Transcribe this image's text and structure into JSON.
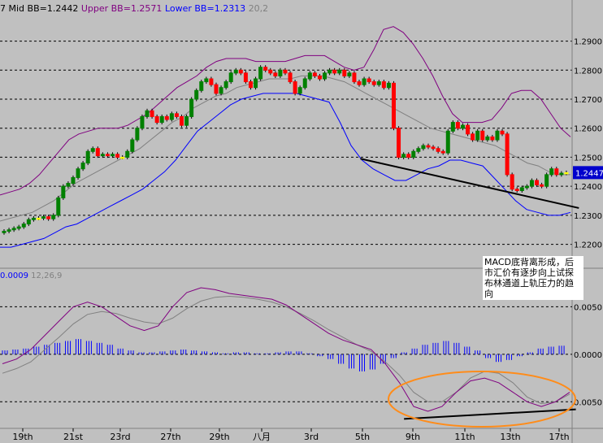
{
  "header": {
    "mid_bb": "Mid BB=1.2442",
    "upper_bb": "Upper BB=1.2571",
    "lower_bb": "Lower BB=1.2313",
    "bb_params": "20,2",
    "clip_prefix": "7"
  },
  "macd_header": {
    "value": "0.0009",
    "params": "12,26,9"
  },
  "current_price": "1.2447",
  "annotation": "MACD底背离形成，后市汇价有逐步向上试探布林通道上轨压力的趋向",
  "colors": {
    "background": "#c0c0c0",
    "bull_candle": "#008000",
    "bear_candle": "#ff0000",
    "doji": "#ffff00",
    "upper_band": "#800080",
    "mid_band": "#808080",
    "lower_band": "#0000ff",
    "histogram": "#0000ff",
    "macd_line": "#800080",
    "signal_line": "#808080",
    "ellipse": "#ff8c1a",
    "price_tag_bg": "#0000cc"
  },
  "chart_data": [
    {
      "type": "candlestick",
      "title": "",
      "ylim": [
        1.214,
        1.298
      ],
      "y_ticks": [
        "1.2900",
        "1.2800",
        "1.2700",
        "1.2600",
        "1.2500",
        "1.2400",
        "1.2300",
        "1.2200"
      ],
      "y_tick_values": [
        1.29,
        1.28,
        1.27,
        1.26,
        1.25,
        1.24,
        1.23,
        1.22
      ],
      "x_ticks": [
        "19th",
        "21st",
        "23rd",
        "27th",
        "29th",
        "八月",
        "3rd",
        "5th",
        "9th",
        "11th",
        "13th",
        "17th"
      ],
      "close": [
        1.2245,
        1.225,
        1.2255,
        1.226,
        1.227,
        1.2285,
        1.229,
        1.229,
        1.2295,
        1.2288,
        1.23,
        1.236,
        1.24,
        1.241,
        1.243,
        1.246,
        1.248,
        1.252,
        1.253,
        1.2505,
        1.251,
        1.2505,
        1.251,
        1.25,
        1.25,
        1.252,
        1.256,
        1.26,
        1.264,
        1.266,
        1.264,
        1.262,
        1.264,
        1.263,
        1.265,
        1.264,
        1.261,
        1.264,
        1.27,
        1.273,
        1.276,
        1.277,
        1.275,
        1.272,
        1.274,
        1.276,
        1.279,
        1.28,
        1.279,
        1.276,
        1.274,
        1.277,
        1.281,
        1.28,
        1.279,
        1.278,
        1.28,
        1.279,
        1.276,
        1.272,
        1.274,
        1.277,
        1.279,
        1.278,
        1.277,
        1.279,
        1.28,
        1.279,
        1.28,
        1.278,
        1.279,
        1.276,
        1.275,
        1.277,
        1.276,
        1.275,
        1.276,
        1.274,
        1.2755,
        1.26,
        1.25,
        1.251,
        1.25,
        1.252,
        1.253,
        1.254,
        1.2535,
        1.253,
        1.252,
        1.2515,
        1.259,
        1.262,
        1.26,
        1.261,
        1.258,
        1.256,
        1.259,
        1.256,
        1.257,
        1.256,
        1.259,
        1.258,
        1.244,
        1.239,
        1.2385,
        1.2395,
        1.24,
        1.242,
        1.2405,
        1.24,
        1.244,
        1.246,
        1.244,
        1.2445,
        1.2447
      ],
      "upper_band": [
        1.237,
        1.238,
        1.239,
        1.241,
        1.244,
        1.248,
        1.252,
        1.256,
        1.258,
        1.259,
        1.26,
        1.26,
        1.26,
        1.261,
        1.263,
        1.265,
        1.268,
        1.271,
        1.274,
        1.276,
        1.278,
        1.281,
        1.283,
        1.284,
        1.284,
        1.284,
        1.283,
        1.283,
        1.283,
        1.283,
        1.284,
        1.285,
        1.285,
        1.285,
        1.283,
        1.281,
        1.28,
        1.281,
        1.287,
        1.294,
        1.295,
        1.293,
        1.289,
        1.284,
        1.278,
        1.271,
        1.265,
        1.262,
        1.262,
        1.262,
        1.263,
        1.267,
        1.272,
        1.273,
        1.273,
        1.27,
        1.265,
        1.26,
        1.257
      ],
      "mid_band": [
        1.228,
        1.229,
        1.23,
        1.231,
        1.233,
        1.235,
        1.238,
        1.241,
        1.243,
        1.245,
        1.247,
        1.249,
        1.251,
        1.253,
        1.256,
        1.259,
        1.262,
        1.264,
        1.267,
        1.269,
        1.271,
        1.272,
        1.274,
        1.275,
        1.276,
        1.277,
        1.277,
        1.277,
        1.278,
        1.278,
        1.278,
        1.277,
        1.276,
        1.274,
        1.272,
        1.27,
        1.268,
        1.266,
        1.264,
        1.262,
        1.26,
        1.259,
        1.258,
        1.257,
        1.256,
        1.255,
        1.254,
        1.252,
        1.25,
        1.248,
        1.247,
        1.245,
        1.244,
        1.244
      ],
      "lower_band": [
        1.219,
        1.219,
        1.22,
        1.221,
        1.222,
        1.224,
        1.226,
        1.227,
        1.229,
        1.231,
        1.233,
        1.235,
        1.237,
        1.239,
        1.242,
        1.245,
        1.249,
        1.254,
        1.259,
        1.262,
        1.265,
        1.268,
        1.27,
        1.271,
        1.272,
        1.272,
        1.272,
        1.272,
        1.271,
        1.27,
        1.269,
        1.262,
        1.254,
        1.249,
        1.246,
        1.244,
        1.242,
        1.242,
        1.244,
        1.246,
        1.247,
        1.249,
        1.249,
        1.248,
        1.247,
        1.243,
        1.239,
        1.235,
        1.232,
        1.231,
        1.23,
        1.23,
        1.231
      ],
      "trendline": [
        [
          1.2495,
          0.63
        ],
        [
          1.2325,
          0.96
        ]
      ]
    },
    {
      "type": "macd",
      "title": "",
      "y_ticks": [
        "0.0050",
        "0.0000",
        "-0.0050"
      ],
      "y_tick_labels": [
        "0.0050",
        "0.0000",
        "0.0050"
      ],
      "ylim": [
        -0.0072,
        0.0082
      ],
      "macd": [
        -0.001,
        -0.0005,
        0.0005,
        0.002,
        0.0035,
        0.005,
        0.0055,
        0.005,
        0.004,
        0.003,
        0.0025,
        0.003,
        0.005,
        0.0065,
        0.007,
        0.0068,
        0.0064,
        0.0062,
        0.006,
        0.0058,
        0.0052,
        0.0042,
        0.0032,
        0.0022,
        0.0015,
        0.001,
        0.0005,
        -0.001,
        -0.003,
        -0.0055,
        -0.006,
        -0.0055,
        -0.004,
        -0.0028,
        -0.0025,
        -0.003,
        -0.004,
        -0.005,
        -0.0055,
        -0.005,
        -0.004
      ],
      "signal": [
        -0.002,
        -0.0015,
        -0.0008,
        0.0005,
        0.0018,
        0.0032,
        0.0042,
        0.0045,
        0.0043,
        0.0038,
        0.0034,
        0.0032,
        0.0038,
        0.0048,
        0.0056,
        0.006,
        0.0061,
        0.006,
        0.0058,
        0.0055,
        0.005,
        0.0043,
        0.0035,
        0.0026,
        0.0018,
        0.001,
        0.0003,
        -0.0008,
        -0.0022,
        -0.004,
        -0.005,
        -0.005,
        -0.004,
        -0.0025,
        -0.0018,
        -0.002,
        -0.003,
        -0.0045,
        -0.0052,
        -0.005,
        -0.0042
      ],
      "histogram": [
        0.0004,
        0.0005,
        0.0006,
        0.0008,
        0.001,
        0.0012,
        0.0014,
        0.0016,
        0.0014,
        0.0012,
        0.001,
        0.0006,
        0.0004,
        0.0002,
        0.0002,
        0.0003,
        0.0004,
        0.0005,
        0.0004,
        0.0003,
        0.0002,
        0.0001,
        0.0002,
        0.0002,
        0.0001,
        0.0001,
        0.0002,
        0.0003,
        0.0003,
        0.0001,
        -0.0002,
        -0.0005,
        -0.001,
        -0.0015,
        -0.0018,
        -0.0016,
        -0.001,
        -0.0004,
        0.0002,
        0.0006,
        0.001,
        0.0012,
        0.0014,
        0.0012,
        0.0008,
        0.0004,
        -0.0004,
        -0.0008,
        -0.0006,
        -0.0002,
        0.0002,
        0.0006,
        0.0008,
        0.0009
      ],
      "trendline": [
        [
          -0.0068,
          0.67
        ],
        [
          -0.0058,
          0.955
        ]
      ]
    }
  ]
}
